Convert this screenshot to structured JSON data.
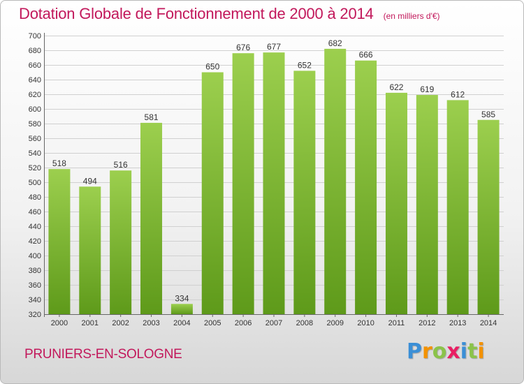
{
  "header": {
    "title": "Dotation Globale de Fonctionnement de 2000 à 2014",
    "unit": "(en milliers d'€)"
  },
  "footer": {
    "commune": "PRUNIERS-EN-SOLOGNE",
    "logo": {
      "letters": [
        "P",
        "r",
        "o",
        "x",
        "i",
        "t",
        "i"
      ],
      "colors": [
        "#3b8fd6",
        "#f39200",
        "#8bc34a",
        "#e91e63",
        "#3b8fd6",
        "#8bc34a",
        "#f39200"
      ]
    }
  },
  "colors": {
    "bar_top": "#9ccf4e",
    "bar_bottom": "#5e9a1a",
    "title": "#c2185b",
    "grid": "#d0d0d0",
    "text": "#333333"
  },
  "chart_data": {
    "type": "bar",
    "title": "Dotation Globale de Fonctionnement de 2000 à 2014",
    "xlabel": "",
    "ylabel": "",
    "categories": [
      "2000",
      "2001",
      "2002",
      "2003",
      "2004",
      "2005",
      "2006",
      "2007",
      "2008",
      "2009",
      "2010",
      "2011",
      "2012",
      "2013",
      "2014"
    ],
    "values": [
      518,
      494,
      516,
      581,
      334,
      650,
      676,
      677,
      652,
      682,
      666,
      622,
      619,
      612,
      585
    ],
    "ylim": [
      320,
      700
    ],
    "yticks": [
      320,
      340,
      360,
      380,
      400,
      420,
      440,
      460,
      480,
      500,
      520,
      540,
      560,
      580,
      600,
      620,
      640,
      660,
      680,
      700
    ],
    "grid": true,
    "legend": "none"
  }
}
